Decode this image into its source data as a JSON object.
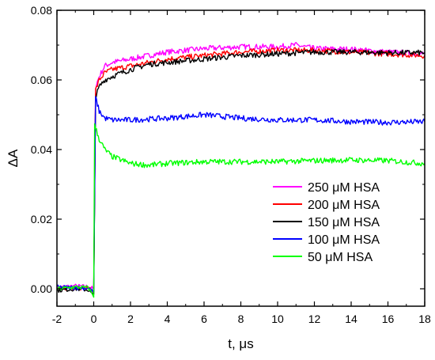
{
  "chart_data": {
    "type": "line",
    "xlabel": "t, μs",
    "ylabel": "ΔA",
    "xlim": [
      -2,
      18
    ],
    "ylim": [
      -0.005,
      0.08
    ],
    "x_ticks": [
      -2,
      0,
      2,
      4,
      6,
      8,
      10,
      12,
      14,
      16,
      18
    ],
    "y_ticks": [
      0.0,
      0.02,
      0.04,
      0.06,
      0.08
    ],
    "y_tick_labels": [
      "0.00",
      "0.02",
      "0.04",
      "0.06",
      "0.08"
    ],
    "legend_position": "lower-right",
    "series": [
      {
        "name": "250 μM HSA",
        "color": "#ff00ff",
        "x": [
          -2,
          -1,
          -0.3,
          0,
          0.1,
          0.3,
          0.6,
          1,
          2,
          3,
          4,
          6,
          8,
          10,
          11,
          12,
          14,
          16,
          18
        ],
        "y": [
          0.0005,
          0.0008,
          0.0006,
          0.0,
          0.058,
          0.061,
          0.064,
          0.065,
          0.066,
          0.067,
          0.068,
          0.069,
          0.0695,
          0.0695,
          0.07,
          0.069,
          0.0688,
          0.068,
          0.0675
        ]
      },
      {
        "name": "200 μM HSA",
        "color": "#ff0000",
        "x": [
          -2,
          -1,
          -0.3,
          0,
          0.1,
          0.3,
          0.6,
          1,
          2,
          3,
          4,
          6,
          8,
          10,
          12,
          14,
          16,
          18
        ],
        "y": [
          0.0,
          0.0003,
          0.0002,
          -0.001,
          0.057,
          0.06,
          0.062,
          0.063,
          0.064,
          0.065,
          0.066,
          0.067,
          0.068,
          0.0685,
          0.0685,
          0.068,
          0.0675,
          0.067
        ]
      },
      {
        "name": "150 μM HSA",
        "color": "#000000",
        "x": [
          -2,
          -1,
          -0.3,
          0,
          0.1,
          0.3,
          0.6,
          1,
          2,
          3,
          4,
          6,
          8,
          10,
          12,
          14,
          16,
          18
        ],
        "y": [
          -0.0005,
          0.0,
          -0.0003,
          -0.002,
          0.055,
          0.058,
          0.06,
          0.061,
          0.063,
          0.0645,
          0.065,
          0.066,
          0.067,
          0.0675,
          0.068,
          0.068,
          0.0678,
          0.0678
        ]
      },
      {
        "name": "100 μM HSA",
        "color": "#0000ff",
        "x": [
          -2,
          -1,
          -0.3,
          0,
          0.1,
          0.3,
          0.6,
          1,
          2,
          4,
          6,
          8,
          10,
          12,
          14,
          16,
          18
        ],
        "y": [
          0.0005,
          0.0003,
          0.0002,
          -0.001,
          0.055,
          0.051,
          0.049,
          0.0485,
          0.0485,
          0.049,
          0.05,
          0.049,
          0.0485,
          0.0485,
          0.048,
          0.0478,
          0.048
        ]
      },
      {
        "name": "50 μM HSA",
        "color": "#00ff00",
        "x": [
          -2,
          -1,
          -0.3,
          0,
          0.05,
          0.3,
          0.6,
          1,
          1.5,
          2,
          3,
          4,
          6,
          8,
          10,
          12,
          14,
          16,
          18
        ],
        "y": [
          0.0,
          0.0005,
          0.0003,
          -0.002,
          0.047,
          0.043,
          0.04,
          0.038,
          0.037,
          0.036,
          0.0355,
          0.036,
          0.0365,
          0.0365,
          0.0365,
          0.0368,
          0.037,
          0.0368,
          0.036
        ]
      }
    ]
  }
}
